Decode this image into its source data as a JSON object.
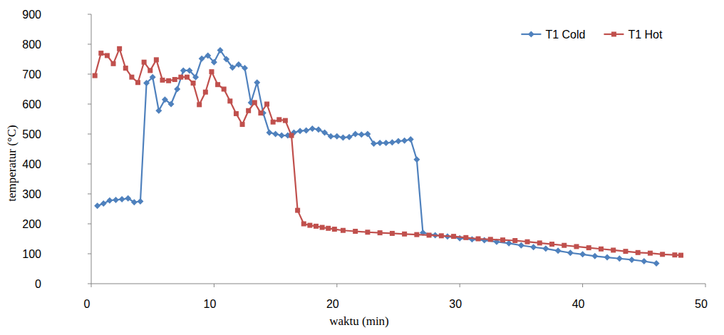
{
  "chart_data": {
    "type": "line",
    "x_label": "waktu (min)",
    "y_label": "temperatur (°C)",
    "xlim": [
      0,
      50
    ],
    "xticks": [
      0,
      10,
      20,
      30,
      40,
      50
    ],
    "ylim": [
      0,
      900
    ],
    "yticks": [
      0,
      100,
      200,
      300,
      400,
      500,
      600,
      700,
      800,
      900
    ],
    "grid": false,
    "legend": "top-right",
    "series": [
      {
        "name": "T1 Cold",
        "color": "#4f81bd",
        "marker": "diamond",
        "line_style": "solid",
        "x": [
          0.5,
          1.0,
          1.5,
          2.0,
          2.5,
          3.0,
          3.5,
          4.0,
          4.5,
          5.0,
          5.5,
          6.0,
          6.5,
          7.0,
          7.5,
          8.0,
          8.5,
          9.0,
          9.5,
          10.0,
          10.5,
          11.0,
          11.5,
          12.0,
          12.5,
          13.0,
          13.5,
          14.0,
          14.5,
          15.0,
          15.5,
          16.0,
          16.5,
          17.0,
          17.5,
          18.0,
          18.5,
          19.0,
          19.5,
          20.0,
          20.5,
          21.0,
          21.5,
          22.0,
          22.5,
          23.0,
          23.5,
          24.0,
          24.5,
          25.0,
          25.5,
          26.0,
          26.5,
          27.0,
          28.0,
          29.0,
          30.0,
          31.0,
          32.0,
          33.0,
          34.0,
          35.0,
          36.0,
          37.0,
          38.0,
          39.0,
          40.0,
          41.0,
          42.0,
          43.0,
          44.0,
          45.0,
          46.0
        ],
        "values": [
          260,
          268,
          278,
          280,
          282,
          285,
          272,
          275,
          670,
          690,
          578,
          615,
          600,
          650,
          712,
          712,
          690,
          752,
          762,
          740,
          780,
          750,
          722,
          732,
          720,
          605,
          672,
          570,
          505,
          500,
          495,
          495,
          505,
          510,
          512,
          518,
          515,
          505,
          492,
          492,
          488,
          490,
          500,
          498,
          500,
          468,
          470,
          470,
          472,
          476,
          478,
          482,
          415,
          170,
          162,
          158,
          152,
          148,
          145,
          140,
          135,
          128,
          122,
          117,
          110,
          103,
          98,
          92,
          88,
          84,
          80,
          75,
          68
        ]
      },
      {
        "name": "T1 Hot",
        "color": "#c0504d",
        "marker": "square",
        "line_style": "solid",
        "x": [
          0.3,
          0.8,
          1.3,
          1.8,
          2.3,
          2.8,
          3.3,
          3.8,
          4.3,
          4.8,
          5.3,
          5.8,
          6.3,
          6.8,
          7.3,
          7.8,
          8.3,
          8.8,
          9.3,
          9.8,
          10.3,
          10.8,
          11.3,
          11.8,
          12.3,
          12.8,
          13.3,
          13.8,
          14.3,
          14.8,
          15.3,
          15.8,
          16.3,
          16.8,
          17.3,
          17.8,
          18.3,
          18.8,
          19.3,
          19.8,
          20.5,
          21.5,
          22.5,
          23.5,
          24.5,
          25.5,
          26.5,
          27.5,
          28.5,
          29.5,
          30.5,
          31.5,
          32.5,
          33.5,
          34.5,
          35.5,
          36.5,
          37.5,
          38.5,
          39.5,
          40.5,
          41.5,
          42.5,
          43.5,
          44.5,
          45.5,
          46.5,
          47.5,
          48.0
        ],
        "values": [
          695,
          770,
          762,
          735,
          785,
          720,
          690,
          672,
          740,
          712,
          748,
          680,
          678,
          682,
          690,
          690,
          670,
          598,
          640,
          708,
          665,
          650,
          610,
          568,
          532,
          578,
          605,
          570,
          600,
          540,
          548,
          545,
          495,
          245,
          200,
          195,
          192,
          188,
          185,
          182,
          178,
          175,
          172,
          170,
          168,
          166,
          164,
          162,
          160,
          158,
          154,
          150,
          148,
          146,
          144,
          140,
          136,
          132,
          128,
          124,
          120,
          116,
          112,
          108,
          104,
          102,
          98,
          96,
          95
        ]
      }
    ]
  }
}
